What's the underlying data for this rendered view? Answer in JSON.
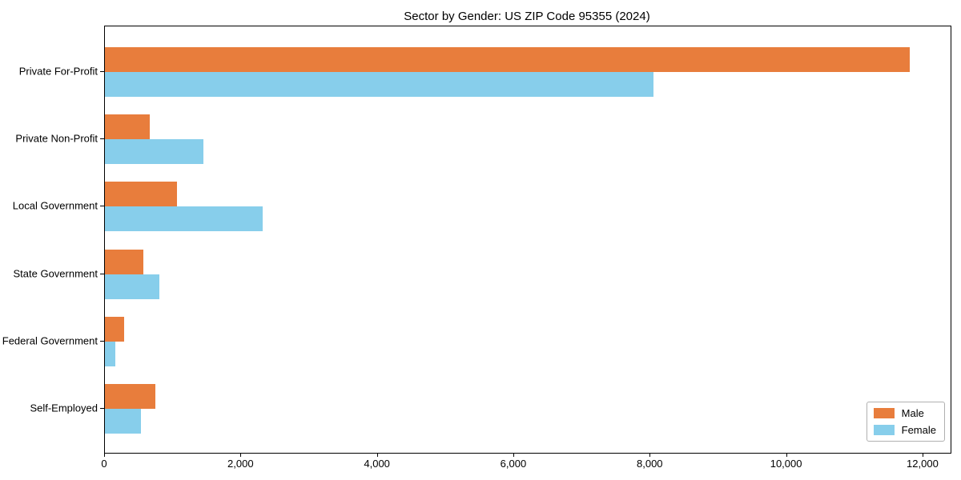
{
  "title": "Sector by Gender: US ZIP Code 95355 (2024)",
  "chart_data": {
    "type": "bar",
    "orientation": "horizontal",
    "title": "Sector by Gender: US ZIP Code 95355 (2024)",
    "categories": [
      "Private For-Profit",
      "Private Non-Profit",
      "Local Government",
      "State Government",
      "Federal Government",
      "Self-Employed"
    ],
    "series": [
      {
        "name": "Male",
        "color": "#e87d3c",
        "values": [
          11800,
          660,
          1060,
          560,
          280,
          740
        ]
      },
      {
        "name": "Female",
        "color": "#87ceeb",
        "values": [
          8040,
          1450,
          2310,
          800,
          150,
          530
        ]
      }
    ],
    "xlabel": "",
    "ylabel": "",
    "xlim": [
      0,
      12400
    ],
    "xticks": [
      0,
      2000,
      4000,
      6000,
      8000,
      10000,
      12000
    ],
    "xtick_labels": [
      "0",
      "2,000",
      "4,000",
      "6,000",
      "8,000",
      "10,000",
      "12,000"
    ],
    "grid": false,
    "legend_position": "lower right",
    "legend_entries": [
      "Male",
      "Female"
    ]
  }
}
